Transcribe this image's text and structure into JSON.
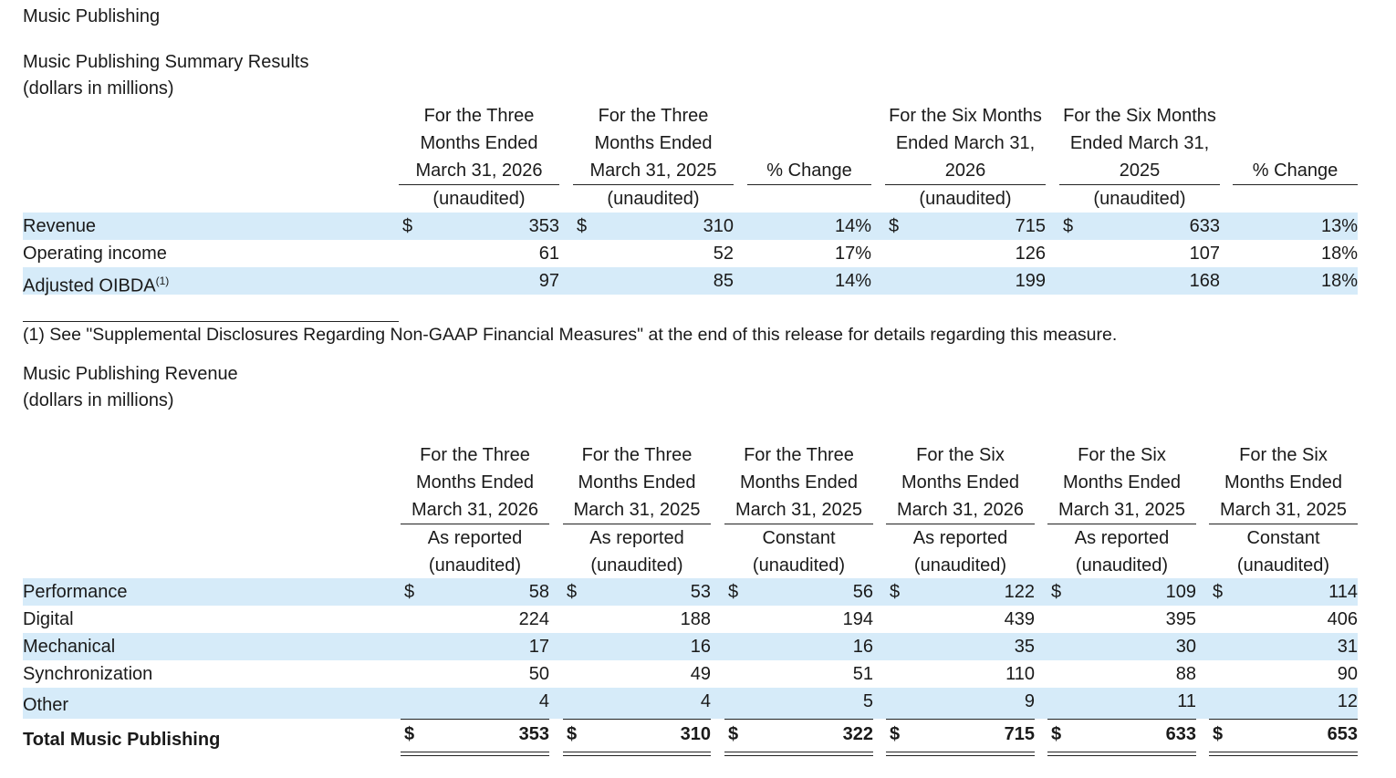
{
  "section_title": "Music Publishing",
  "summary": {
    "title": "Music Publishing Summary Results",
    "subtitle": "(dollars in millions)",
    "columns": [
      {
        "l1": "For the Three",
        "l2": "Months Ended",
        "l3": "March 31, 2026",
        "l4": "(unaudited)"
      },
      {
        "l1": "For the Three",
        "l2": "Months Ended",
        "l3": "March 31, 2025",
        "l4": "(unaudited)"
      },
      {
        "l1": "",
        "l2": "",
        "l3": "% Change",
        "l4": ""
      },
      {
        "l1": "For the Six Months",
        "l2": "Ended March 31,",
        "l3": "2026",
        "l4": "(unaudited)"
      },
      {
        "l1": "For the Six Months",
        "l2": "Ended March 31,",
        "l3": "2025",
        "l4": "(unaudited)"
      },
      {
        "l1": "",
        "l2": "",
        "l3": "% Change",
        "l4": ""
      }
    ],
    "rows": [
      {
        "label": "Revenue",
        "sup": "",
        "dollar": "$",
        "values": [
          "353",
          "310",
          "14%",
          "715",
          "633",
          "13%"
        ]
      },
      {
        "label": "Operating income",
        "sup": "",
        "dollar": "",
        "values": [
          "61",
          "52",
          "17%",
          "126",
          "107",
          "18%"
        ]
      },
      {
        "label": "Adjusted OIBDA",
        "sup": "(1)",
        "dollar": "",
        "values": [
          "97",
          "85",
          "14%",
          "199",
          "168",
          "18%"
        ]
      }
    ],
    "footnote": "(1) See \"Supplemental Disclosures Regarding Non-GAAP Financial Measures\" at the end of this release for details regarding this measure."
  },
  "revenue": {
    "title": "Music Publishing Revenue",
    "subtitle": "(dollars in millions)",
    "columns": [
      {
        "l1": "For the Three",
        "l2": "Months Ended",
        "l3": "March 31, 2026",
        "l4": "As reported",
        "l5": "(unaudited)"
      },
      {
        "l1": "For the Three",
        "l2": "Months Ended",
        "l3": "March 31, 2025",
        "l4": "As reported",
        "l5": "(unaudited)"
      },
      {
        "l1": "For the Three",
        "l2": "Months Ended",
        "l3": "March 31, 2025",
        "l4": "Constant",
        "l5": "(unaudited)"
      },
      {
        "l1": "For the Six",
        "l2": "Months Ended",
        "l3": "March 31, 2026",
        "l4": "As reported",
        "l5": "(unaudited)"
      },
      {
        "l1": "For the Six",
        "l2": "Months Ended",
        "l3": "March 31, 2025",
        "l4": "As reported",
        "l5": "(unaudited)"
      },
      {
        "l1": "For the Six",
        "l2": "Months Ended",
        "l3": "March 31, 2025",
        "l4": "Constant",
        "l5": "(unaudited)"
      }
    ],
    "rows": [
      {
        "label": "Performance",
        "dollar": "$",
        "values": [
          "58",
          "53",
          "56",
          "122",
          "109",
          "114"
        ]
      },
      {
        "label": "Digital",
        "dollar": "",
        "values": [
          "224",
          "188",
          "194",
          "439",
          "395",
          "406"
        ]
      },
      {
        "label": "Mechanical",
        "dollar": "",
        "values": [
          "17",
          "16",
          "16",
          "35",
          "30",
          "31"
        ]
      },
      {
        "label": "Synchronization",
        "dollar": "",
        "values": [
          "50",
          "49",
          "51",
          "110",
          "88",
          "90"
        ]
      },
      {
        "label": "Other",
        "dollar": "",
        "values": [
          "4",
          "4",
          "5",
          "9",
          "11",
          "12"
        ]
      }
    ],
    "total": {
      "label": "Total Music Publishing",
      "dollar": "$",
      "values": [
        "353",
        "310",
        "322",
        "715",
        "633",
        "653"
      ]
    }
  },
  "colors": {
    "band": "#d6ebf9",
    "text": "#1a1a1a"
  }
}
